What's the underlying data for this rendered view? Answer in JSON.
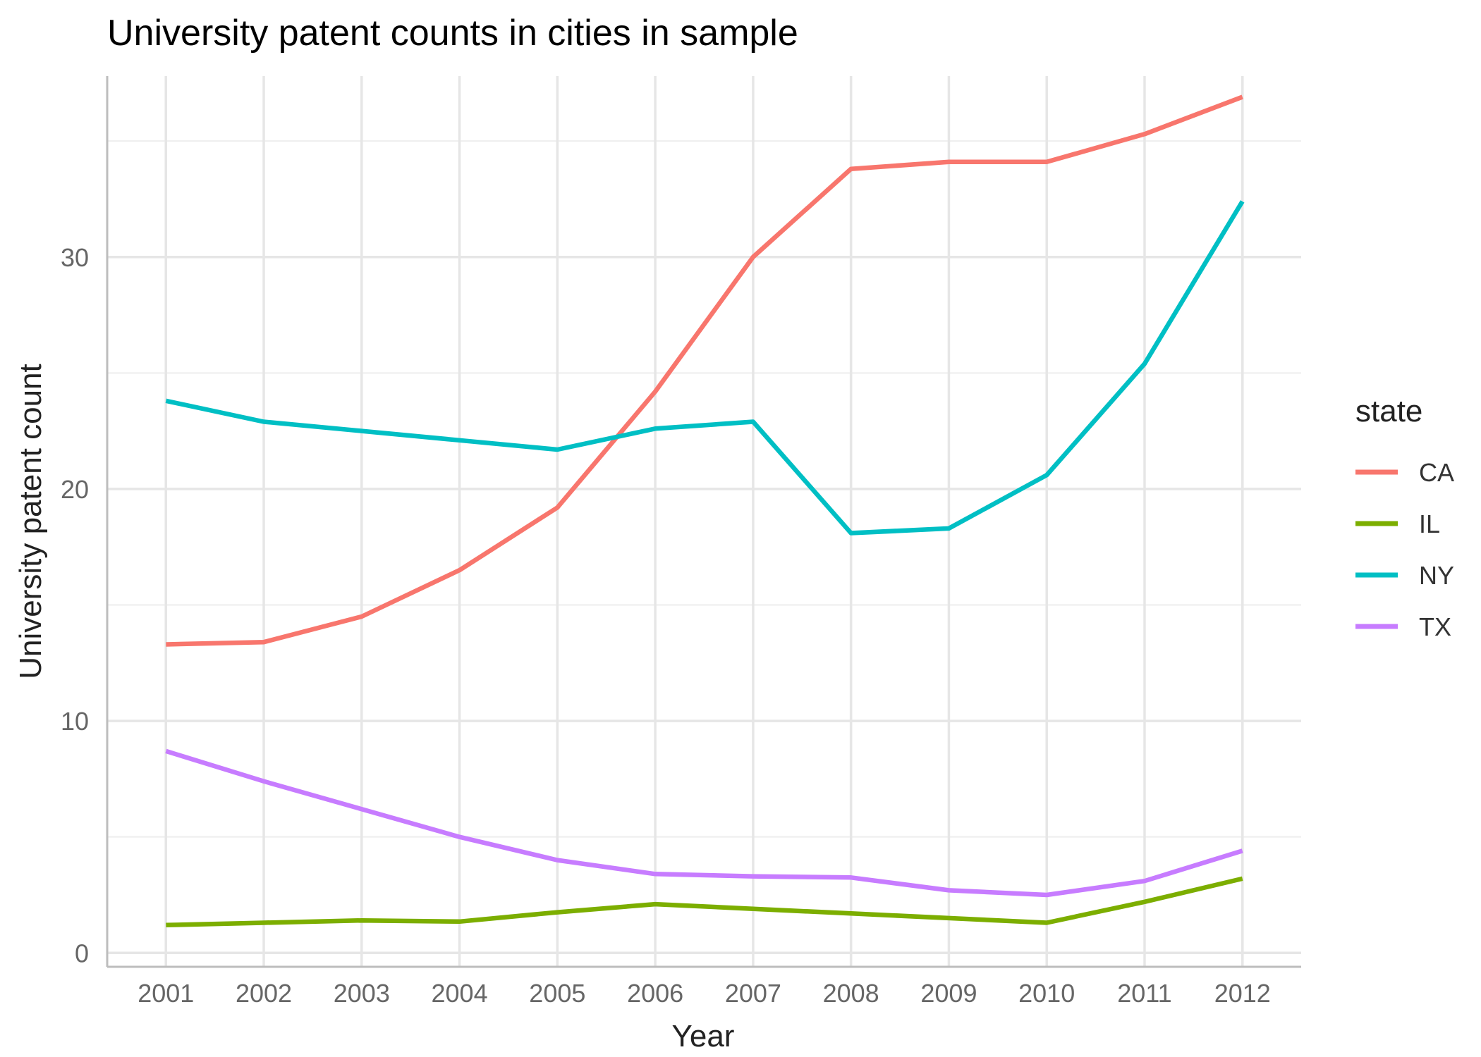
{
  "chart_data": {
    "type": "line",
    "title": "University patent counts in cities in sample",
    "xlabel": "Year",
    "ylabel": "University patent count",
    "x": [
      2001,
      2002,
      2003,
      2004,
      2005,
      2006,
      2007,
      2008,
      2009,
      2010,
      2011,
      2012
    ],
    "x_tick_labels": [
      "2001",
      "2002",
      "2003",
      "2004",
      "2005",
      "2006",
      "2007",
      "2008",
      "2009",
      "2010",
      "2011",
      "2012"
    ],
    "ylim": [
      -0.6,
      37.8
    ],
    "y_ticks": [
      0,
      10,
      20,
      30
    ],
    "y_tick_labels": [
      "0",
      "10",
      "20",
      "30"
    ],
    "y_minor_ticks": [
      5,
      15,
      25,
      35
    ],
    "grid": true,
    "legend": {
      "title": "state",
      "position": "right"
    },
    "series": [
      {
        "name": "CA",
        "color": "#F8766D",
        "values": [
          13.3,
          13.4,
          14.5,
          16.5,
          19.2,
          24.2,
          30.0,
          33.8,
          34.1,
          34.1,
          35.3,
          36.9
        ]
      },
      {
        "name": "IL",
        "color": "#7CAE00",
        "values": [
          1.2,
          1.3,
          1.4,
          1.35,
          1.75,
          2.1,
          1.9,
          1.7,
          1.5,
          1.3,
          2.2,
          3.2
        ]
      },
      {
        "name": "NY",
        "color": "#00BFC4",
        "values": [
          23.8,
          22.9,
          22.5,
          22.1,
          21.7,
          22.6,
          22.9,
          18.1,
          18.3,
          20.6,
          25.4,
          32.4
        ]
      },
      {
        "name": "TX",
        "color": "#C77CFF",
        "values": [
          8.7,
          7.4,
          6.2,
          5.0,
          4.0,
          3.4,
          3.3,
          3.25,
          2.7,
          2.5,
          3.1,
          4.4
        ]
      }
    ]
  }
}
